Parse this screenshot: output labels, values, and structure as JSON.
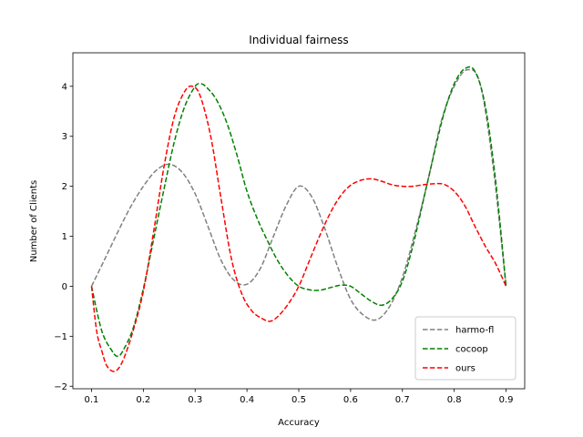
{
  "chart_data": {
    "type": "line",
    "title": "Individual fairness",
    "xlabel": "Accuracy",
    "ylabel": "Number of Clients",
    "xlim": [
      0.064,
      0.936
    ],
    "ylim": [
      -2.05,
      4.67
    ],
    "xticks": [
      0.1,
      0.2,
      0.3,
      0.4,
      0.5,
      0.6,
      0.7,
      0.8,
      0.9
    ],
    "yticks": [
      -2,
      -1,
      0,
      1,
      2,
      3,
      4
    ],
    "xtick_labels": [
      "0.1",
      "0.2",
      "0.3",
      "0.4",
      "0.5",
      "0.6",
      "0.7",
      "0.8",
      "0.9"
    ],
    "ytick_labels": [
      "−2",
      "−1",
      "0",
      "1",
      "2",
      "3",
      "4"
    ],
    "grid": false,
    "legend_position": "lower-right",
    "series": [
      {
        "name": "harmo-fl",
        "color": "#808080",
        "x": [
          0.1,
          0.125,
          0.15,
          0.175,
          0.2,
          0.225,
          0.25,
          0.275,
          0.3,
          0.325,
          0.35,
          0.375,
          0.4,
          0.425,
          0.45,
          0.475,
          0.5,
          0.525,
          0.55,
          0.575,
          0.6,
          0.625,
          0.65,
          0.675,
          0.7,
          0.725,
          0.75,
          0.775,
          0.8,
          0.825,
          0.85,
          0.875,
          0.9
        ],
        "y": [
          0.0,
          0.53,
          1.07,
          1.58,
          2.0,
          2.32,
          2.44,
          2.28,
          1.85,
          1.19,
          0.52,
          0.12,
          0.04,
          0.34,
          0.97,
          1.6,
          2.0,
          1.79,
          1.16,
          0.39,
          -0.26,
          -0.58,
          -0.67,
          -0.41,
          0.18,
          1.1,
          2.15,
          3.3,
          4.0,
          4.33,
          4.05,
          2.4,
          0.0
        ]
      },
      {
        "name": "cocoop",
        "color": "#008000",
        "x": [
          0.1,
          0.12,
          0.14,
          0.15,
          0.16,
          0.18,
          0.2,
          0.22,
          0.24,
          0.26,
          0.28,
          0.3,
          0.31,
          0.32,
          0.34,
          0.36,
          0.38,
          0.4,
          0.42,
          0.44,
          0.46,
          0.48,
          0.5,
          0.52,
          0.54,
          0.56,
          0.58,
          0.6,
          0.62,
          0.64,
          0.66,
          0.68,
          0.7,
          0.72,
          0.74,
          0.76,
          0.78,
          0.8,
          0.82,
          0.84,
          0.86,
          0.88,
          0.9
        ],
        "y": [
          0.0,
          -0.9,
          -1.3,
          -1.4,
          -1.3,
          -0.85,
          -0.05,
          0.95,
          1.95,
          2.9,
          3.6,
          4.0,
          4.05,
          4.0,
          3.75,
          3.3,
          2.65,
          1.9,
          1.35,
          0.9,
          0.5,
          0.2,
          0.0,
          -0.07,
          -0.08,
          -0.03,
          0.02,
          0.0,
          -0.15,
          -0.3,
          -0.38,
          -0.25,
          0.1,
          0.8,
          1.7,
          2.6,
          3.45,
          4.05,
          4.35,
          4.3,
          3.6,
          2.1,
          0.0
        ]
      },
      {
        "name": "ours",
        "color": "#ff0000",
        "x": [
          0.1,
          0.11,
          0.12,
          0.13,
          0.145,
          0.16,
          0.18,
          0.2,
          0.22,
          0.24,
          0.26,
          0.28,
          0.295,
          0.31,
          0.33,
          0.35,
          0.37,
          0.39,
          0.41,
          0.43,
          0.445,
          0.46,
          0.48,
          0.5,
          0.52,
          0.54,
          0.56,
          0.58,
          0.6,
          0.62,
          0.64,
          0.66,
          0.68,
          0.7,
          0.72,
          0.74,
          0.76,
          0.78,
          0.8,
          0.82,
          0.84,
          0.86,
          0.88,
          0.9
        ],
        "y": [
          0.0,
          -0.9,
          -1.3,
          -1.6,
          -1.7,
          -1.5,
          -0.9,
          -0.1,
          1.1,
          2.4,
          3.4,
          3.9,
          4.0,
          3.8,
          3.0,
          1.75,
          0.55,
          -0.15,
          -0.5,
          -0.65,
          -0.7,
          -0.6,
          -0.35,
          0.0,
          0.5,
          1.0,
          1.45,
          1.8,
          2.02,
          2.12,
          2.15,
          2.1,
          2.03,
          2.0,
          2.0,
          2.03,
          2.05,
          2.04,
          1.9,
          1.62,
          1.2,
          0.8,
          0.45,
          0.0
        ]
      }
    ]
  }
}
